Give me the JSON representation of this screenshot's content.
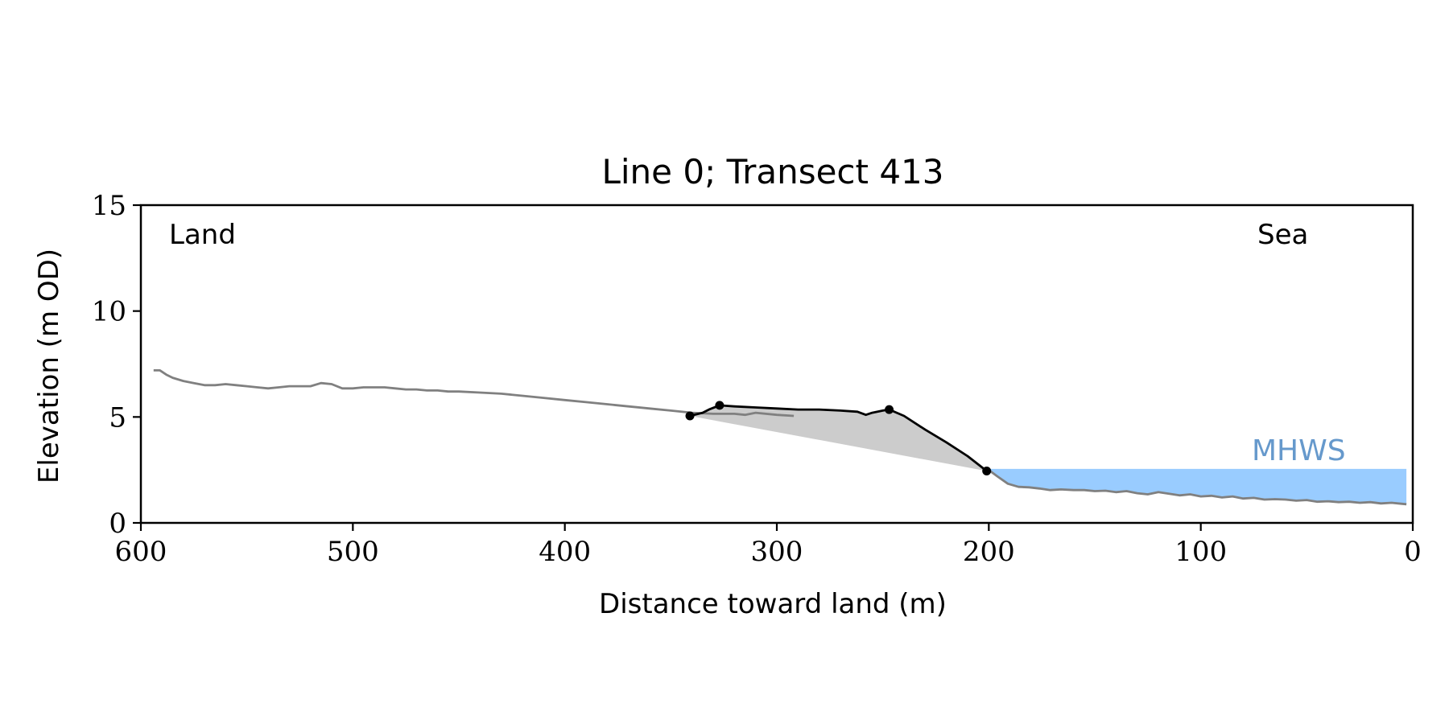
{
  "chart_data": {
    "type": "line",
    "title": "Line 0; Transect 413",
    "xlabel": "Distance toward land (m)",
    "ylabel": "Elevation (m OD)",
    "xlim": [
      600,
      0
    ],
    "ylim": [
      0,
      15
    ],
    "x_ticks": [
      600,
      500,
      400,
      300,
      200,
      100,
      0
    ],
    "y_ticks": [
      0,
      5,
      10,
      15
    ],
    "grid": false,
    "annotations": {
      "land": "Land",
      "sea": "Sea",
      "mhws": "MHWS"
    },
    "mhws_level": 2.55,
    "colors": {
      "profile": "#808080",
      "dune": "#000000",
      "dune_fill": "#cccccc",
      "sea_fill": "#99ccff",
      "mhws_text": "#6699cc"
    },
    "series": [
      {
        "points": [
          [
            594,
            7.2
          ],
          [
            591,
            7.2
          ],
          [
            588,
            7.0
          ],
          [
            585,
            6.85
          ],
          [
            580,
            6.7
          ],
          [
            575,
            6.6
          ],
          [
            570,
            6.5
          ],
          [
            565,
            6.5
          ],
          [
            560,
            6.55
          ],
          [
            555,
            6.5
          ],
          [
            550,
            6.45
          ],
          [
            545,
            6.4
          ],
          [
            540,
            6.35
          ],
          [
            535,
            6.4
          ],
          [
            530,
            6.45
          ],
          [
            525,
            6.45
          ],
          [
            520,
            6.45
          ],
          [
            515,
            6.6
          ],
          [
            510,
            6.55
          ],
          [
            505,
            6.35
          ],
          [
            500,
            6.35
          ],
          [
            495,
            6.4
          ],
          [
            490,
            6.4
          ],
          [
            485,
            6.4
          ],
          [
            480,
            6.35
          ],
          [
            475,
            6.3
          ],
          [
            470,
            6.3
          ],
          [
            465,
            6.25
          ],
          [
            460,
            6.25
          ],
          [
            455,
            6.2
          ],
          [
            450,
            6.2
          ],
          [
            440,
            6.15
          ],
          [
            430,
            6.1
          ],
          [
            420,
            6.0
          ],
          [
            410,
            5.9
          ],
          [
            400,
            5.8
          ],
          [
            390,
            5.7
          ],
          [
            380,
            5.6
          ],
          [
            370,
            5.5
          ],
          [
            360,
            5.4
          ],
          [
            350,
            5.3
          ],
          [
            340,
            5.2
          ],
          [
            330,
            5.15
          ],
          [
            320,
            5.15
          ],
          [
            315,
            5.1
          ],
          [
            310,
            5.2
          ],
          [
            300,
            5.1
          ],
          [
            292,
            5.05
          ]
        ]
      },
      {
        "points": [
          [
            200,
            2.5
          ],
          [
            196,
            2.2
          ],
          [
            191,
            1.85
          ],
          [
            186,
            1.7
          ],
          [
            181,
            1.68
          ],
          [
            176,
            1.62
          ],
          [
            171,
            1.55
          ],
          [
            166,
            1.58
          ],
          [
            160,
            1.55
          ],
          [
            155,
            1.55
          ],
          [
            150,
            1.5
          ],
          [
            145,
            1.52
          ],
          [
            140,
            1.45
          ],
          [
            135,
            1.5
          ],
          [
            130,
            1.4
          ],
          [
            125,
            1.35
          ],
          [
            120,
            1.45
          ],
          [
            115,
            1.38
          ],
          [
            110,
            1.3
          ],
          [
            105,
            1.35
          ],
          [
            100,
            1.25
          ],
          [
            95,
            1.28
          ],
          [
            90,
            1.2
          ],
          [
            85,
            1.25
          ],
          [
            80,
            1.15
          ],
          [
            75,
            1.18
          ],
          [
            70,
            1.1
          ],
          [
            65,
            1.12
          ],
          [
            60,
            1.1
          ],
          [
            55,
            1.05
          ],
          [
            50,
            1.08
          ],
          [
            45,
            1.0
          ],
          [
            40,
            1.02
          ],
          [
            35,
            0.98
          ],
          [
            30,
            1.0
          ],
          [
            25,
            0.95
          ],
          [
            20,
            0.98
          ],
          [
            15,
            0.92
          ],
          [
            10,
            0.95
          ],
          [
            5,
            0.9
          ],
          [
            3,
            0.88
          ]
        ]
      },
      {
        "points": [
          [
            341,
            5.05
          ],
          [
            335,
            5.2
          ],
          [
            332,
            5.35
          ],
          [
            327,
            5.55
          ],
          [
            320,
            5.5
          ],
          [
            310,
            5.45
          ],
          [
            300,
            5.4
          ],
          [
            290,
            5.35
          ],
          [
            280,
            5.35
          ],
          [
            270,
            5.3
          ],
          [
            262,
            5.25
          ],
          [
            258,
            5.1
          ],
          [
            255,
            5.2
          ],
          [
            250,
            5.3
          ],
          [
            247,
            5.35
          ],
          [
            240,
            5.05
          ],
          [
            230,
            4.4
          ],
          [
            220,
            3.8
          ],
          [
            210,
            3.15
          ],
          [
            201,
            2.45
          ]
        ]
      }
    ],
    "dune_markers": [
      [
        341,
        5.05
      ],
      [
        327,
        5.55
      ],
      [
        247,
        5.35
      ],
      [
        201,
        2.45
      ]
    ]
  }
}
